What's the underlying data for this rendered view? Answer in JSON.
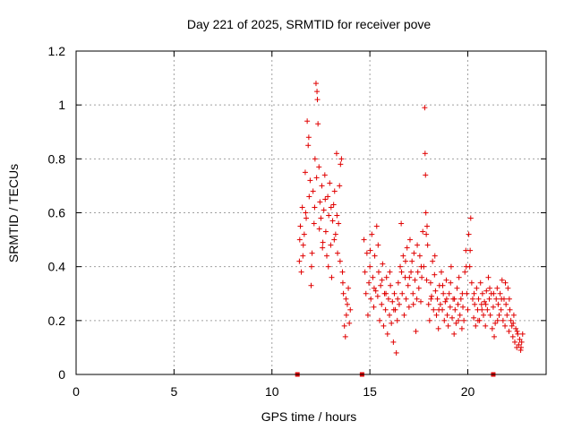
{
  "chart_data": {
    "type": "scatter",
    "title": "Day 221 of 2025, SRMTID for receiver pove",
    "xlabel": "GPS time / hours",
    "ylabel": "SRMTID / TECUs",
    "xlim": [
      0,
      24
    ],
    "ylim": [
      0,
      1.2
    ],
    "xticks": [
      0,
      5,
      10,
      15,
      20
    ],
    "yticks": [
      0,
      0.2,
      0.4,
      0.6,
      0.8,
      1,
      1.2
    ],
    "grid": true,
    "marker": "+",
    "color": "#e00000",
    "baseline_markers_x": [
      11.3,
      14.6,
      21.3
    ],
    "points": [
      [
        11.4,
        0.42
      ],
      [
        11.45,
        0.55
      ],
      [
        11.5,
        0.38
      ],
      [
        11.55,
        0.62
      ],
      [
        11.6,
        0.48
      ],
      [
        11.65,
        0.52
      ],
      [
        11.7,
        0.75
      ],
      [
        11.75,
        0.58
      ],
      [
        11.8,
        0.94
      ],
      [
        11.85,
        0.85
      ],
      [
        11.9,
        0.66
      ],
      [
        11.95,
        0.72
      ],
      [
        12.0,
        0.33
      ],
      [
        12.05,
        0.45
      ],
      [
        12.1,
        0.68
      ],
      [
        12.15,
        0.56
      ],
      [
        12.2,
        0.8
      ],
      [
        12.25,
        1.08
      ],
      [
        12.3,
        1.05
      ],
      [
        12.32,
        1.02
      ],
      [
        12.35,
        0.93
      ],
      [
        12.4,
        0.77
      ],
      [
        12.45,
        0.64
      ],
      [
        12.5,
        0.58
      ],
      [
        12.55,
        0.7
      ],
      [
        12.6,
        0.49
      ],
      [
        12.65,
        0.61
      ],
      [
        12.7,
        0.74
      ],
      [
        12.75,
        0.53
      ],
      [
        12.8,
        0.44
      ],
      [
        12.85,
        0.66
      ],
      [
        12.9,
        0.59
      ],
      [
        12.95,
        0.71
      ],
      [
        13.0,
        0.48
      ],
      [
        13.05,
        0.36
      ],
      [
        13.1,
        0.57
      ],
      [
        13.15,
        0.63
      ],
      [
        13.2,
        0.68
      ],
      [
        13.25,
        0.52
      ],
      [
        13.3,
        0.82
      ],
      [
        13.35,
        0.45
      ],
      [
        13.4,
        0.56
      ],
      [
        13.45,
        0.7
      ],
      [
        13.5,
        0.78
      ],
      [
        13.55,
        0.8
      ],
      [
        13.6,
        0.38
      ],
      [
        13.65,
        0.3
      ],
      [
        13.7,
        0.18
      ],
      [
        13.75,
        0.14
      ],
      [
        13.8,
        0.22
      ],
      [
        13.85,
        0.26
      ],
      [
        13.9,
        0.32
      ],
      [
        13.95,
        0.19
      ],
      [
        14.0,
        0.24
      ],
      [
        11.42,
        0.5
      ],
      [
        11.58,
        0.44
      ],
      [
        11.72,
        0.6
      ],
      [
        11.88,
        0.88
      ],
      [
        12.02,
        0.4
      ],
      [
        12.18,
        0.62
      ],
      [
        12.28,
        0.73
      ],
      [
        12.42,
        0.54
      ],
      [
        12.58,
        0.47
      ],
      [
        12.72,
        0.65
      ],
      [
        12.88,
        0.4
      ],
      [
        13.02,
        0.62
      ],
      [
        13.18,
        0.5
      ],
      [
        13.32,
        0.59
      ],
      [
        13.48,
        0.42
      ],
      [
        13.62,
        0.34
      ],
      [
        13.78,
        0.28
      ],
      [
        14.7,
        0.5
      ],
      [
        14.75,
        0.38
      ],
      [
        14.8,
        0.3
      ],
      [
        14.85,
        0.45
      ],
      [
        14.9,
        0.22
      ],
      [
        14.95,
        0.34
      ],
      [
        15.0,
        0.4
      ],
      [
        15.05,
        0.28
      ],
      [
        15.1,
        0.52
      ],
      [
        15.15,
        0.36
      ],
      [
        15.2,
        0.25
      ],
      [
        15.25,
        0.44
      ],
      [
        15.3,
        0.31
      ],
      [
        15.35,
        0.55
      ],
      [
        15.4,
        0.29
      ],
      [
        15.45,
        0.38
      ],
      [
        15.5,
        0.2
      ],
      [
        15.55,
        0.33
      ],
      [
        15.6,
        0.26
      ],
      [
        15.65,
        0.41
      ],
      [
        15.7,
        0.18
      ],
      [
        15.75,
        0.3
      ],
      [
        15.8,
        0.24
      ],
      [
        15.85,
        0.36
      ],
      [
        15.9,
        0.15
      ],
      [
        15.95,
        0.28
      ],
      [
        16.0,
        0.22
      ],
      [
        16.05,
        0.33
      ],
      [
        16.1,
        0.19
      ],
      [
        16.15,
        0.27
      ],
      [
        16.2,
        0.12
      ],
      [
        16.25,
        0.3
      ],
      [
        16.3,
        0.24
      ],
      [
        16.35,
        0.08
      ],
      [
        16.4,
        0.2
      ],
      [
        16.45,
        0.34
      ],
      [
        16.5,
        0.26
      ],
      [
        16.55,
        0.4
      ],
      [
        16.6,
        0.56
      ],
      [
        16.65,
        0.3
      ],
      [
        16.7,
        0.44
      ],
      [
        16.75,
        0.22
      ],
      [
        16.8,
        0.36
      ],
      [
        16.85,
        0.28
      ],
      [
        16.9,
        0.47
      ],
      [
        16.95,
        0.33
      ],
      [
        17.0,
        0.25
      ],
      [
        17.05,
        0.5
      ],
      [
        17.1,
        0.38
      ],
      [
        17.15,
        0.42
      ],
      [
        17.2,
        0.3
      ],
      [
        17.25,
        0.45
      ],
      [
        17.3,
        0.35
      ],
      [
        17.35,
        0.16
      ],
      [
        17.4,
        0.28
      ],
      [
        17.45,
        0.38
      ],
      [
        17.5,
        0.32
      ],
      [
        17.55,
        0.44
      ],
      [
        17.6,
        0.27
      ],
      [
        17.65,
        0.36
      ],
      [
        17.7,
        0.53
      ],
      [
        17.75,
        0.4
      ],
      [
        17.8,
        0.99
      ],
      [
        17.82,
        0.82
      ],
      [
        17.84,
        0.74
      ],
      [
        17.86,
        0.6
      ],
      [
        17.88,
        0.52
      ],
      [
        17.9,
        0.35
      ],
      [
        17.95,
        0.48
      ],
      [
        18.0,
        0.26
      ],
      [
        18.05,
        0.2
      ],
      [
        18.1,
        0.34
      ],
      [
        18.15,
        0.29
      ],
      [
        18.2,
        0.42
      ],
      [
        18.25,
        0.24
      ],
      [
        18.3,
        0.37
      ],
      [
        18.35,
        0.31
      ],
      [
        18.4,
        0.22
      ],
      [
        18.45,
        0.28
      ],
      [
        18.5,
        0.17
      ],
      [
        18.55,
        0.33
      ],
      [
        18.6,
        0.26
      ],
      [
        18.65,
        0.38
      ],
      [
        18.7,
        0.24
      ],
      [
        18.75,
        0.3
      ],
      [
        18.8,
        0.2
      ],
      [
        18.85,
        0.27
      ],
      [
        18.9,
        0.35
      ],
      [
        18.95,
        0.22
      ],
      [
        19.0,
        0.18
      ],
      [
        19.05,
        0.3
      ],
      [
        19.1,
        0.25
      ],
      [
        19.15,
        0.4
      ],
      [
        19.2,
        0.21
      ],
      [
        19.25,
        0.28
      ],
      [
        19.3,
        0.15
      ],
      [
        19.35,
        0.24
      ],
      [
        19.4,
        0.19
      ],
      [
        19.45,
        0.32
      ],
      [
        19.5,
        0.26
      ],
      [
        19.55,
        0.36
      ],
      [
        19.6,
        0.22
      ],
      [
        19.65,
        0.28
      ],
      [
        19.7,
        0.17
      ],
      [
        19.75,
        0.25
      ],
      [
        19.8,
        0.2
      ],
      [
        19.85,
        0.38
      ],
      [
        19.9,
        0.46
      ],
      [
        19.95,
        0.3
      ],
      [
        20.0,
        0.24
      ],
      [
        20.05,
        0.52
      ],
      [
        20.1,
        0.4
      ],
      [
        20.15,
        0.58
      ],
      [
        20.2,
        0.34
      ],
      [
        20.25,
        0.28
      ],
      [
        20.3,
        0.21
      ],
      [
        20.35,
        0.26
      ],
      [
        20.4,
        0.18
      ],
      [
        20.45,
        0.32
      ],
      [
        20.5,
        0.24
      ],
      [
        20.55,
        0.28
      ],
      [
        20.6,
        0.2
      ],
      [
        20.65,
        0.34
      ],
      [
        20.7,
        0.26
      ],
      [
        20.75,
        0.3
      ],
      [
        20.8,
        0.22
      ],
      [
        20.85,
        0.27
      ],
      [
        20.9,
        0.18
      ],
      [
        20.95,
        0.31
      ],
      [
        21.0,
        0.24
      ],
      [
        21.05,
        0.36
      ],
      [
        21.1,
        0.28
      ],
      [
        21.15,
        0.22
      ],
      [
        21.2,
        0.3
      ],
      [
        21.25,
        0.17
      ],
      [
        21.3,
        0.25
      ],
      [
        21.35,
        0.14
      ],
      [
        21.4,
        0.19
      ],
      [
        21.45,
        0.28
      ],
      [
        21.5,
        0.32
      ],
      [
        21.55,
        0.26
      ],
      [
        21.6,
        0.22
      ],
      [
        21.65,
        0.3
      ],
      [
        21.7,
        0.24
      ],
      [
        21.75,
        0.35
      ],
      [
        21.8,
        0.2
      ],
      [
        21.85,
        0.28
      ],
      [
        21.9,
        0.18
      ],
      [
        21.95,
        0.26
      ],
      [
        22.0,
        0.22
      ],
      [
        22.05,
        0.32
      ],
      [
        22.1,
        0.16
      ],
      [
        22.15,
        0.24
      ],
      [
        22.2,
        0.2
      ],
      [
        22.25,
        0.18
      ],
      [
        22.3,
        0.14
      ],
      [
        22.35,
        0.22
      ],
      [
        22.4,
        0.12
      ],
      [
        22.45,
        0.17
      ],
      [
        22.5,
        0.1
      ],
      [
        22.55,
        0.15
      ],
      [
        22.6,
        0.11
      ],
      [
        22.65,
        0.13
      ],
      [
        22.7,
        0.09
      ],
      [
        22.75,
        0.12
      ],
      [
        22.8,
        0.15
      ],
      [
        15.02,
        0.46
      ],
      [
        15.22,
        0.32
      ],
      [
        15.42,
        0.48
      ],
      [
        15.62,
        0.35
      ],
      [
        15.82,
        0.3
      ],
      [
        16.02,
        0.38
      ],
      [
        16.22,
        0.24
      ],
      [
        16.42,
        0.28
      ],
      [
        16.62,
        0.38
      ],
      [
        16.82,
        0.42
      ],
      [
        17.02,
        0.36
      ],
      [
        17.22,
        0.26
      ],
      [
        17.42,
        0.48
      ],
      [
        17.62,
        0.4
      ],
      [
        17.92,
        0.55
      ],
      [
        18.12,
        0.28
      ],
      [
        18.32,
        0.44
      ],
      [
        18.52,
        0.24
      ],
      [
        18.72,
        0.33
      ],
      [
        18.92,
        0.28
      ],
      [
        19.12,
        0.34
      ],
      [
        19.32,
        0.28
      ],
      [
        19.52,
        0.2
      ],
      [
        19.72,
        0.3
      ],
      [
        19.92,
        0.4
      ],
      [
        20.12,
        0.46
      ],
      [
        20.32,
        0.3
      ],
      [
        20.52,
        0.2
      ],
      [
        20.72,
        0.24
      ],
      [
        20.92,
        0.26
      ],
      [
        21.12,
        0.32
      ],
      [
        21.32,
        0.3
      ],
      [
        21.52,
        0.2
      ],
      [
        21.72,
        0.28
      ],
      [
        21.92,
        0.34
      ],
      [
        22.12,
        0.28
      ],
      [
        22.32,
        0.19
      ],
      [
        22.52,
        0.16
      ],
      [
        22.72,
        0.1
      ]
    ]
  }
}
